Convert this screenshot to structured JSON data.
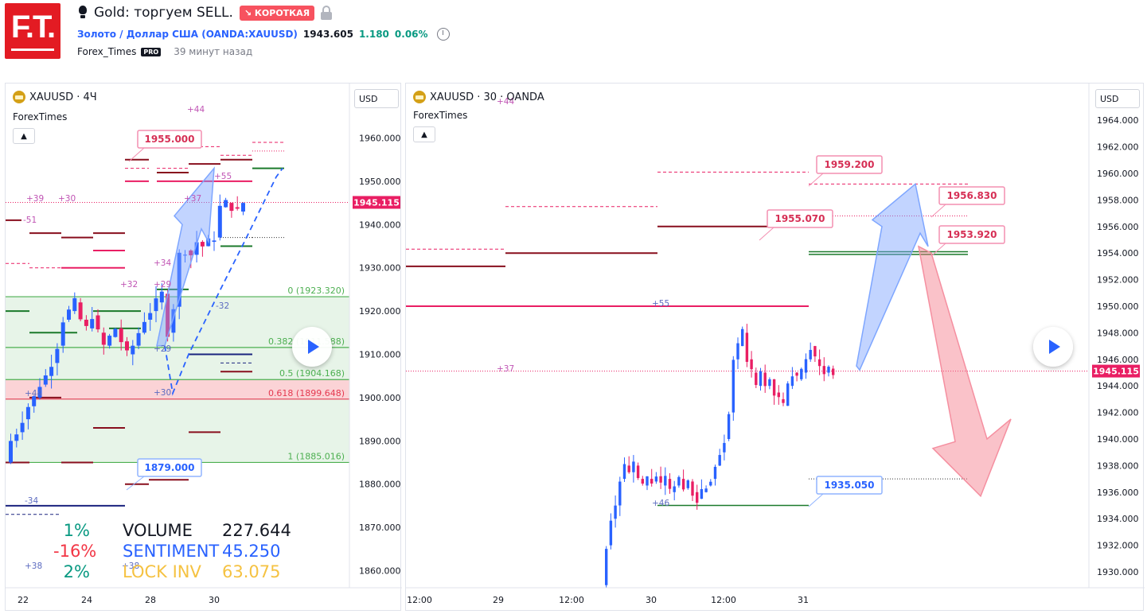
{
  "header": {
    "logo_text": "F.T.",
    "idea_title": "Gold: торгуем SELL.",
    "badge": "↘ КОРОТКАЯ",
    "symbol_link": "Золото / Доллар США (OANDA:XAUUSD)",
    "price": "1943.605",
    "change": "1.180",
    "change_pct": "0.06%",
    "author": "Forex_Times",
    "pro": "PRO",
    "time_ago": "39 минут назад",
    "icons": [
      "lightbulb-icon",
      "lock-icon",
      "alarm-clock-icon"
    ]
  },
  "colors": {
    "bull": "#2962ff",
    "bear": "#e91e63",
    "fib_line": "#4caf50",
    "fib_zone": "#e7f4e8",
    "fib_red": "#fbd3d6",
    "red_line": "#e91e63",
    "dark_red": "#880e1d",
    "green_line": "#1b7a2b",
    "label_red": "#f06085",
    "label_blue": "#2962ff",
    "price_tag": "#e91e63"
  },
  "left_chart": {
    "title": "XAUUSD · 4Ч",
    "subtitle": "ForexTimes",
    "currency": "USD",
    "last_price": "1945.115",
    "ticks": [
      "1960.000",
      "1950.000",
      "1940.000",
      "1930.000",
      "1920.000",
      "1910.000",
      "1900.000",
      "1890.000",
      "1880.000",
      "1870.000",
      "1860.000"
    ],
    "tick_values": [
      1960,
      1950,
      1940,
      1930,
      1920,
      1910,
      1900,
      1890,
      1880,
      1870,
      1860
    ],
    "x_labels": [
      "22",
      "24",
      "28",
      "30"
    ],
    "fib": [
      {
        "label": "0 (1923.320)"
      },
      {
        "label": "0.382 (1911.588)"
      },
      {
        "label": "0.5 (1904.168)"
      },
      {
        "label": "0.618 (1899.648)"
      },
      {
        "label": "1 (1885.016)"
      }
    ],
    "price_labels": [
      {
        "text": "1955.000",
        "kind": "red"
      },
      {
        "text": "1879.000",
        "kind": "blue"
      }
    ],
    "counts": [
      "+44",
      "+39",
      "+30",
      "-51",
      "+55",
      "+37",
      "+34",
      "+32",
      "+29",
      "-32",
      "+29",
      "+44",
      "+30",
      "-34",
      "+38",
      "+38"
    ],
    "stats": [
      {
        "pct": "1%",
        "pct_color": "#089981",
        "name": "VOLUME",
        "name_color": "#131722",
        "value": "227.644",
        "value_color": "#131722"
      },
      {
        "pct": "-16%",
        "pct_color": "#f23645",
        "name": "SENTIMENT",
        "name_color": "#2962ff",
        "value": "45.250",
        "value_color": "#2962ff"
      },
      {
        "pct": "2%",
        "pct_color": "#089981",
        "name": "LOCK INV",
        "name_color": "#f5c242",
        "value": "63.075",
        "value_color": "#f5c242"
      }
    ]
  },
  "right_chart": {
    "title": "XAUUSD · 30 · OANDA",
    "subtitle": "ForexTimes",
    "currency": "USD",
    "last_price": "1945.115",
    "ticks": [
      "1964.000",
      "1962.000",
      "1960.000",
      "1958.000",
      "1956.000",
      "1954.000",
      "1952.000",
      "1950.000",
      "1948.000",
      "1946.000",
      "1944.000",
      "1942.000",
      "1940.000",
      "1938.000",
      "1936.000",
      "1934.000",
      "1932.000",
      "1930.000"
    ],
    "tick_values": [
      1964,
      1962,
      1960,
      1958,
      1956,
      1954,
      1952,
      1950,
      1948,
      1946,
      1944,
      1942,
      1940,
      1938,
      1936,
      1934,
      1932,
      1930
    ],
    "x_labels": [
      "12:00",
      "29",
      "12:00",
      "30",
      "12:00",
      "31"
    ],
    "price_labels": [
      {
        "text": "1959.200",
        "kind": "red"
      },
      {
        "text": "1956.830",
        "kind": "red"
      },
      {
        "text": "1955.070",
        "kind": "red"
      },
      {
        "text": "1953.920",
        "kind": "red"
      },
      {
        "text": "1935.050",
        "kind": "blue"
      }
    ],
    "counts": [
      "+44",
      "+55",
      "+37",
      "+46"
    ]
  }
}
